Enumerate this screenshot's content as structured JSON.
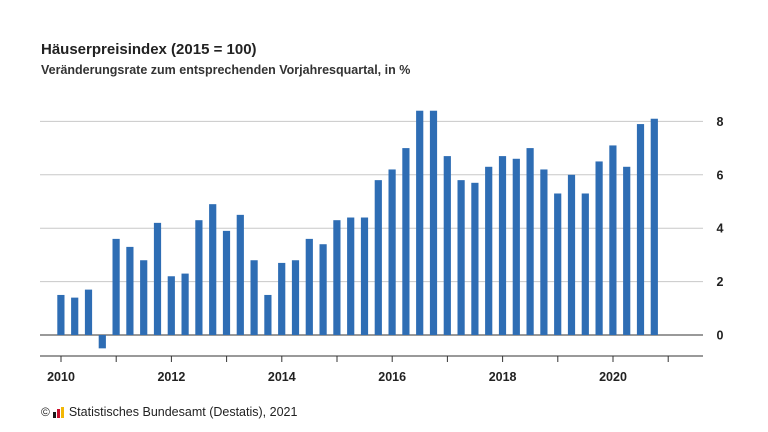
{
  "chart_data": {
    "type": "bar",
    "title": "Häuserpreisindex (2015 = 100)",
    "subtitle": "Veränderungsrate zum entsprechenden Vorjahresquartal, in %",
    "x_tick_labels": [
      "2010",
      "2012",
      "2014",
      "2016",
      "2018",
      "2020"
    ],
    "y_ticks": [
      0,
      2,
      4,
      6,
      8
    ],
    "ylim": [
      -0.85,
      9.5
    ],
    "grid": true,
    "y_axis_position": "right",
    "bar_color": "#2e6db4",
    "categories": [
      "2010 Q1",
      "2010 Q2",
      "2010 Q3",
      "2010 Q4",
      "2011 Q1",
      "2011 Q2",
      "2011 Q3",
      "2011 Q4",
      "2012 Q1",
      "2012 Q2",
      "2012 Q3",
      "2012 Q4",
      "2013 Q1",
      "2013 Q2",
      "2013 Q3",
      "2013 Q4",
      "2014 Q1",
      "2014 Q2",
      "2014 Q3",
      "2014 Q4",
      "2015 Q1",
      "2015 Q2",
      "2015 Q3",
      "2015 Q4",
      "2016 Q1",
      "2016 Q2",
      "2016 Q3",
      "2016 Q4",
      "2017 Q1",
      "2017 Q2",
      "2017 Q3",
      "2017 Q4",
      "2018 Q1",
      "2018 Q2",
      "2018 Q3",
      "2018 Q4",
      "2019 Q1",
      "2019 Q2",
      "2019 Q3",
      "2019 Q4",
      "2020 Q1",
      "2020 Q2",
      "2020 Q3",
      "2020 Q4"
    ],
    "values": [
      1.5,
      1.4,
      1.7,
      -0.5,
      3.6,
      3.3,
      2.8,
      4.2,
      2.2,
      2.3,
      4.3,
      4.9,
      3.9,
      4.5,
      2.8,
      1.5,
      2.7,
      2.8,
      3.6,
      3.4,
      4.3,
      4.4,
      4.4,
      5.8,
      6.2,
      7.0,
      8.4,
      8.4,
      6.7,
      5.8,
      5.7,
      6.3,
      6.7,
      6.6,
      7.0,
      6.2,
      5.3,
      6.0,
      5.3,
      6.5,
      7.1,
      6.3,
      7.9,
      8.1
    ]
  },
  "footer": {
    "copyright_symbol": "©",
    "source_text": "Statistisches Bundesamt (Destatis), 2021"
  }
}
